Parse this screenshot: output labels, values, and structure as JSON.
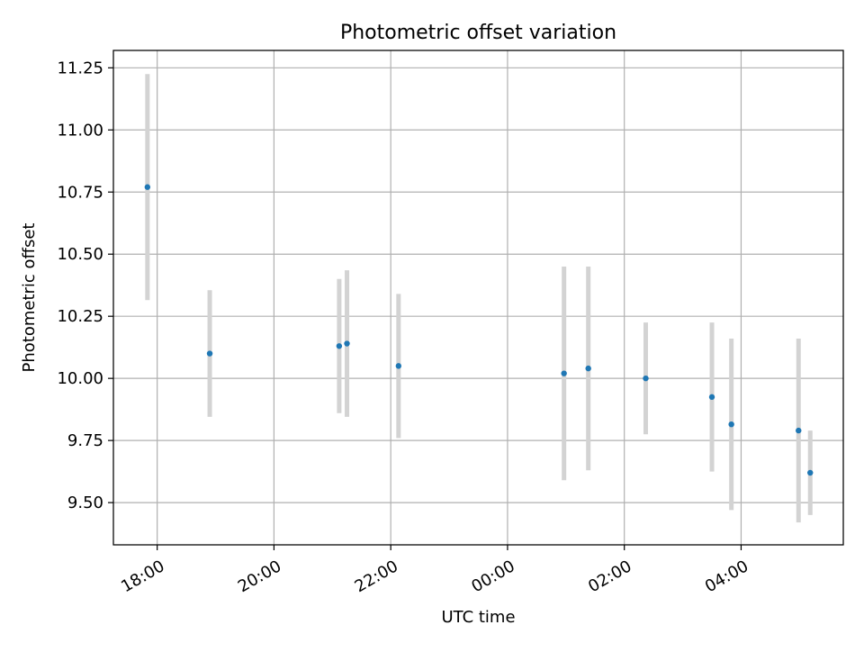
{
  "chart_data": {
    "type": "scatter",
    "title": "Photometric offset variation",
    "xlabel": "UTC time",
    "ylabel": "Photometric offset",
    "x_axis": {
      "type": "time",
      "range": [
        "17:15",
        "05:45"
      ],
      "ticks": [
        "18:00",
        "20:00",
        "22:00",
        "00:00",
        "02:00",
        "04:00"
      ]
    },
    "y_axis": {
      "range": [
        9.33,
        11.32
      ],
      "ticks": [
        "9.50",
        "9.75",
        "10.00",
        "10.25",
        "10.50",
        "10.75",
        "11.00",
        "11.25"
      ]
    },
    "grid": true,
    "points": [
      {
        "x": "17:50",
        "y": 10.77,
        "err": 0.455
      },
      {
        "x": "18:54",
        "y": 10.1,
        "err": 0.255
      },
      {
        "x": "21:07",
        "y": 10.13,
        "err": 0.27
      },
      {
        "x": "21:15",
        "y": 10.14,
        "err": 0.295
      },
      {
        "x": "22:08",
        "y": 10.05,
        "err": 0.29
      },
      {
        "x": "00:58",
        "y": 10.02,
        "err": 0.43
      },
      {
        "x": "01:23",
        "y": 10.04,
        "err": 0.41
      },
      {
        "x": "02:22",
        "y": 10.0,
        "err": 0.225
      },
      {
        "x": "03:30",
        "y": 9.925,
        "err": 0.3
      },
      {
        "x": "03:50",
        "y": 9.815,
        "err": 0.345
      },
      {
        "x": "04:59",
        "y": 9.79,
        "err": 0.37
      },
      {
        "x": "05:11",
        "y": 9.62,
        "err": 0.17
      }
    ],
    "colors": {
      "point": "#1f77b4",
      "errorbar": "#d3d3d3",
      "grid": "#b0b0b0",
      "axes": "#000000"
    }
  }
}
